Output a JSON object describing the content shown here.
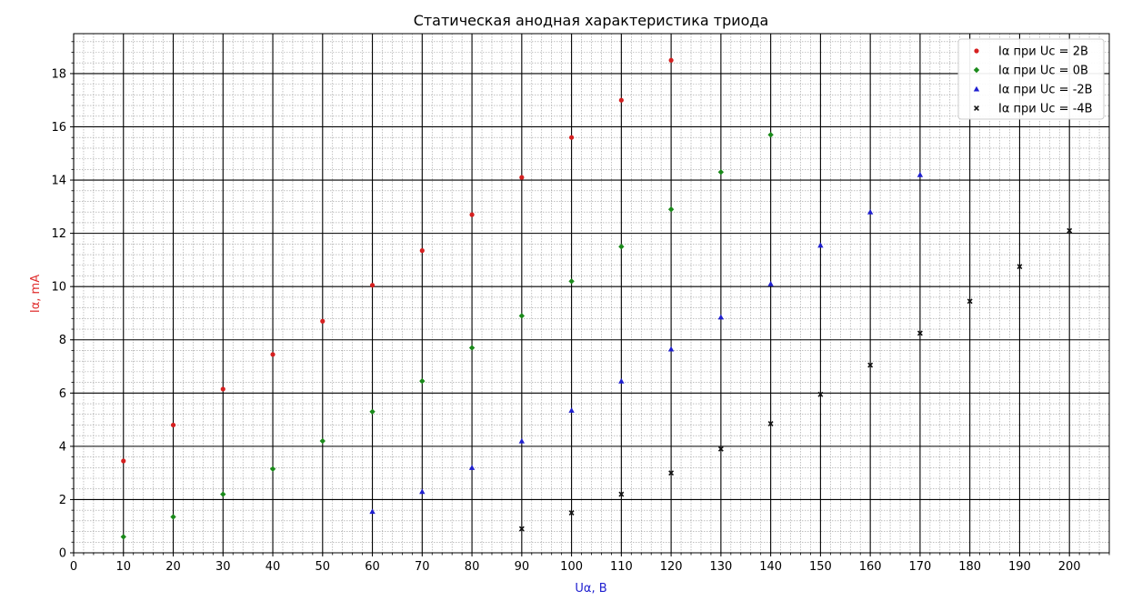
{
  "chart_data": {
    "type": "scatter",
    "title": "Статическая анодная характеристика триода",
    "xlabel": "Uα, B",
    "ylabel": "Iα, mA",
    "xlabel_color": "#1f1fd0",
    "ylabel_color": "#e03030",
    "xlim": [
      0,
      208
    ],
    "ylim": [
      0,
      19.5
    ],
    "xticks": [
      0,
      10,
      20,
      30,
      40,
      50,
      60,
      70,
      80,
      90,
      100,
      110,
      120,
      130,
      140,
      150,
      160,
      170,
      180,
      190,
      200
    ],
    "yticks": [
      0,
      2,
      4,
      6,
      8,
      10,
      12,
      14,
      16,
      18
    ],
    "xtick_labels": [
      "0",
      "10",
      "20",
      "30",
      "40",
      "50",
      "60",
      "70",
      "80",
      "90",
      "100",
      "110",
      "120",
      "130",
      "140",
      "150",
      "160",
      "170",
      "180",
      "190",
      "200"
    ],
    "ytick_labels": [
      "0",
      "2",
      "4",
      "6",
      "8",
      "10",
      "12",
      "14",
      "16",
      "18"
    ],
    "x_minor_step": 2,
    "y_minor_step": 0.4,
    "grid": true,
    "legend_position": "top-right",
    "series": [
      {
        "name": "Iα при Uc = 2B",
        "color": "#d62020",
        "marker": "circle",
        "x": [
          10,
          20,
          30,
          40,
          50,
          60,
          70,
          80,
          90,
          100,
          110,
          120
        ],
        "y": [
          3.45,
          4.8,
          6.15,
          7.45,
          8.7,
          10.05,
          11.35,
          12.7,
          14.1,
          15.6,
          17.0,
          18.5
        ]
      },
      {
        "name": "Iα при Uc = 0B",
        "color": "#1a8a1a",
        "marker": "diamond",
        "x": [
          10,
          20,
          30,
          40,
          50,
          60,
          70,
          80,
          90,
          100,
          110,
          120,
          130,
          140
        ],
        "y": [
          0.6,
          1.35,
          2.2,
          3.15,
          4.2,
          5.3,
          6.45,
          7.7,
          8.9,
          10.2,
          11.5,
          12.9,
          14.3,
          15.7
        ]
      },
      {
        "name": "Iα при Uc = -2B",
        "color": "#1f1fd0",
        "marker": "triangle",
        "x": [
          60,
          70,
          80,
          90,
          100,
          110,
          120,
          130,
          140,
          150,
          160,
          170
        ],
        "y": [
          1.55,
          2.3,
          3.2,
          4.2,
          5.35,
          6.45,
          7.65,
          8.85,
          10.1,
          11.55,
          12.8,
          14.2
        ]
      },
      {
        "name": "Iα при Uc = -4B",
        "color": "#111111",
        "marker": "x",
        "x": [
          90,
          100,
          110,
          120,
          130,
          140,
          150,
          160,
          170,
          180,
          190,
          200
        ],
        "y": [
          0.9,
          1.5,
          2.2,
          3.0,
          3.9,
          4.85,
          5.95,
          7.05,
          8.25,
          9.45,
          10.75,
          12.1
        ]
      }
    ]
  }
}
